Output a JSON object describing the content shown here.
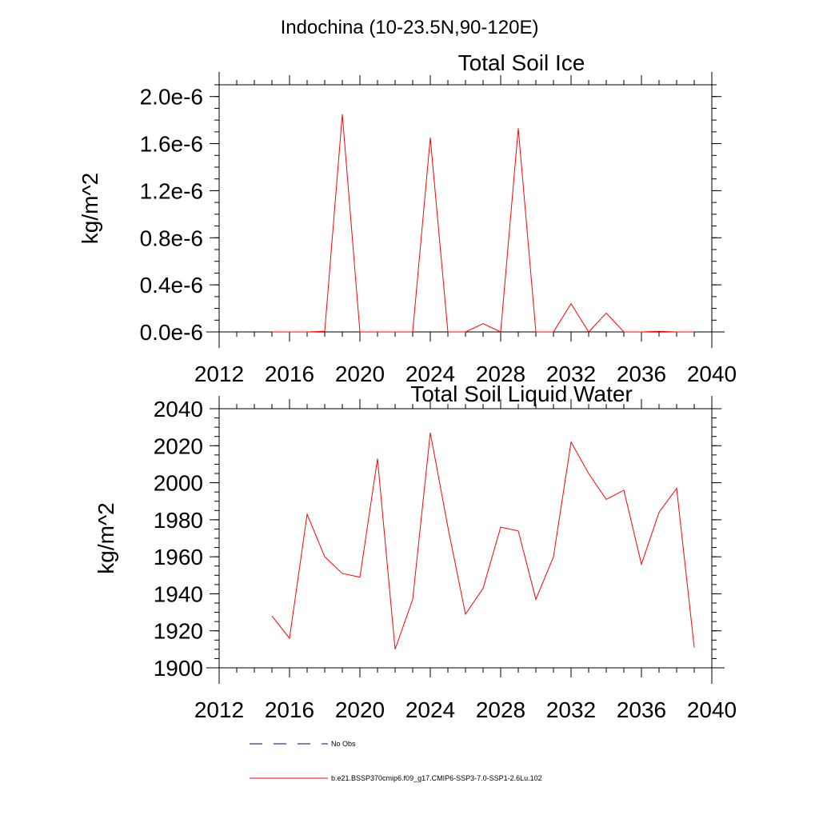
{
  "figure": {
    "suptitle": "Indochina (10-23.5N,90-120E)"
  },
  "legend": {
    "placement": "bottom",
    "items": [
      {
        "label": "No Obs",
        "color": "#000080",
        "style": "dashed"
      },
      {
        "label": "b.e21.BSSP370cmip6.f09_g17.CMIP6-SSP3-7.0-SSP1-2.6Lu.102",
        "color": "#ff0000",
        "style": "solid"
      }
    ]
  },
  "chart_data": [
    {
      "type": "line",
      "title": "Total Soil Ice",
      "xlabel": "",
      "ylabel": "kg/m^2",
      "xlim": [
        2012,
        2040
      ],
      "ylim": [
        0,
        2.1e-06
      ],
      "xticks": [
        2012,
        2016,
        2020,
        2024,
        2028,
        2032,
        2036,
        2040
      ],
      "xtick_labels": [
        "2012",
        "2016",
        "2020",
        "2024",
        "2028",
        "2032",
        "2036",
        "2040"
      ],
      "yticks": [
        0,
        4e-07,
        8e-07,
        1.2e-06,
        1.6e-06,
        2e-06
      ],
      "ytick_labels": [
        "0.0e-6",
        "0.4e-6",
        "0.8e-6",
        "1.2e-6",
        "1.6e-6",
        "2.0e-6"
      ],
      "grid": false,
      "x": [
        2015,
        2016,
        2017,
        2018,
        2019,
        2020,
        2021,
        2022,
        2023,
        2024,
        2025,
        2026,
        2027,
        2028,
        2029,
        2030,
        2031,
        2032,
        2033,
        2034,
        2035,
        2036,
        2037,
        2038,
        2039
      ],
      "series": [
        {
          "color": "#ff0000",
          "values": [
            0,
            0,
            0,
            5e-09,
            1.85e-06,
            0,
            0,
            0,
            0,
            1.65e-06,
            0,
            0,
            7e-08,
            0,
            1.73e-06,
            0,
            0,
            2.4e-07,
            0,
            1.6e-07,
            0,
            0,
            5e-09,
            0,
            0
          ]
        }
      ]
    },
    {
      "type": "line",
      "title": "Total Soil Liquid Water",
      "xlabel": "",
      "ylabel": "kg/m^2",
      "xlim": [
        2012,
        2040
      ],
      "ylim": [
        1900,
        2040
      ],
      "xticks": [
        2012,
        2016,
        2020,
        2024,
        2028,
        2032,
        2036,
        2040
      ],
      "xtick_labels": [
        "2012",
        "2016",
        "2020",
        "2024",
        "2028",
        "2032",
        "2036",
        "2040"
      ],
      "yticks": [
        1900,
        1920,
        1940,
        1960,
        1980,
        2000,
        2020,
        2040
      ],
      "ytick_labels": [
        "1900",
        "1920",
        "1940",
        "1960",
        "1980",
        "2000",
        "2020",
        "2040"
      ],
      "grid": false,
      "x": [
        2015,
        2016,
        2017,
        2018,
        2019,
        2020,
        2021,
        2022,
        2023,
        2024,
        2025,
        2026,
        2027,
        2028,
        2029,
        2030,
        2031,
        2032,
        2033,
        2034,
        2035,
        2036,
        2037,
        2038,
        2039
      ],
      "series": [
        {
          "color": "#ff0000",
          "values": [
            1928,
            1916,
            1983,
            1960,
            1951,
            1949,
            2013,
            1910,
            1937,
            2027,
            1976,
            1929,
            1943,
            1976,
            1974,
            1937,
            1960,
            2022,
            2005,
            1991,
            1996,
            1956,
            1984,
            1997,
            1911
          ]
        }
      ]
    }
  ]
}
